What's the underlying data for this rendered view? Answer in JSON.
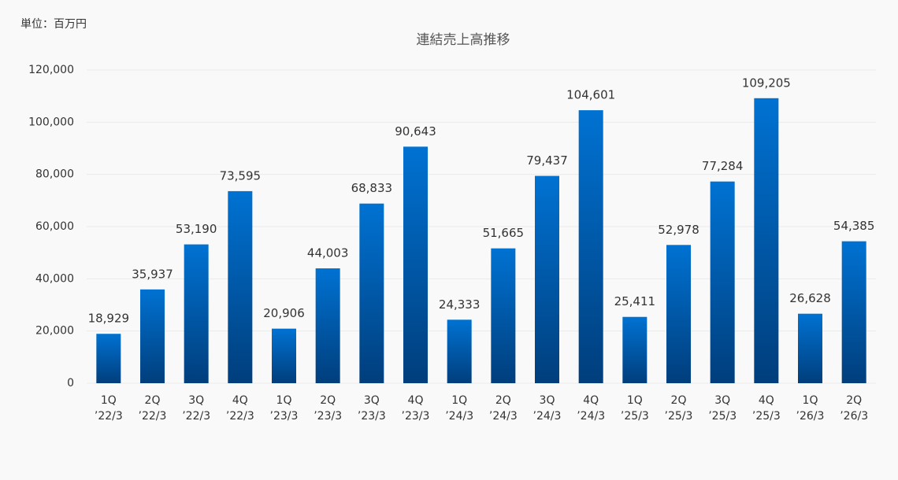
{
  "chart_data": {
    "type": "bar",
    "unit_label": "単位：百万円",
    "title": "連結売上高推移",
    "categories": [
      [
        "1Q",
        "’22/3"
      ],
      [
        "2Q",
        "’22/3"
      ],
      [
        "3Q",
        "’22/3"
      ],
      [
        "4Q",
        "’22/3"
      ],
      [
        "1Q",
        "’23/3"
      ],
      [
        "2Q",
        "’23/3"
      ],
      [
        "3Q",
        "’23/3"
      ],
      [
        "4Q",
        "’23/3"
      ],
      [
        "1Q",
        "’24/3"
      ],
      [
        "2Q",
        "’24/3"
      ],
      [
        "3Q",
        "’24/3"
      ],
      [
        "4Q",
        "’24/3"
      ],
      [
        "1Q",
        "’25/3"
      ],
      [
        "2Q",
        "’25/3"
      ],
      [
        "3Q",
        "’25/3"
      ],
      [
        "4Q",
        "’25/3"
      ],
      [
        "1Q",
        "’26/3"
      ],
      [
        "2Q",
        "’26/3"
      ]
    ],
    "values": [
      18929,
      35937,
      53190,
      73595,
      20906,
      44003,
      68833,
      90643,
      24333,
      51665,
      79437,
      104601,
      25411,
      52978,
      77284,
      109205,
      26628,
      54385
    ],
    "value_labels": [
      "18,929",
      "35,937",
      "53,190",
      "73,595",
      "20,906",
      "44,003",
      "68,833",
      "90,643",
      "24,333",
      "51,665",
      "79,437",
      "104,601",
      "25,411",
      "52,978",
      "77,284",
      "109,205",
      "26,628",
      "54,385"
    ],
    "color": [
      "#0072d2",
      "#003e7c"
    ],
    "ylim": [
      0,
      120000
    ],
    "yticks": [
      0,
      {
        "value": 20000,
        "label": "20,000"
      },
      {
        "value": 40000,
        "label": "40,000"
      },
      {
        "value": 60000,
        "label": "60,000"
      },
      {
        "value": 80000,
        "label": "80,000"
      },
      {
        "value": 100000,
        "label": "100,000"
      },
      {
        "value": 120000,
        "label": "120,000"
      }
    ],
    "grid": true
  }
}
